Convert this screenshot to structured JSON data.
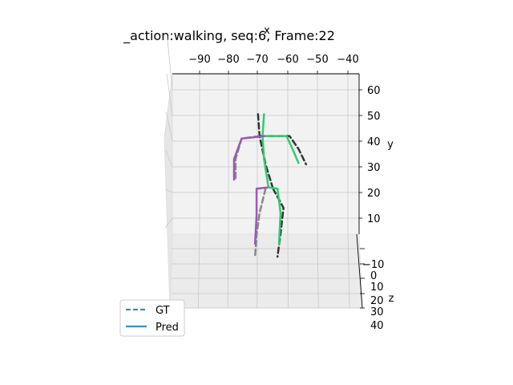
{
  "chart_data": {
    "type": "line",
    "title": "_action:walking, seq:6,   Frame:22",
    "xlabel": "x",
    "ylabel": "y",
    "zlabel": "z",
    "x_ticks": [
      "−90",
      "−80",
      "−70",
      "−60",
      "−50",
      "−40"
    ],
    "y_ticks": [
      "10",
      "20",
      "30",
      "40",
      "50",
      "60"
    ],
    "z_ticks": [
      "−10",
      "0",
      "10",
      "20",
      "30",
      "40"
    ],
    "legend": [
      {
        "label": "GT",
        "style": "dashed",
        "color": "#3a8fc7"
      },
      {
        "label": "Pred",
        "style": "solid",
        "color": "#3a8fc7"
      }
    ],
    "legend_position": "lower-left",
    "colors": {
      "pred_left": "#9b59b6",
      "pred_right": "#2ecc71",
      "pred_center": "#2ecc71",
      "gt_left": "#888888",
      "gt_right": "#333333"
    },
    "skeleton": {
      "gt": [
        {
          "name": "spine",
          "side": "center",
          "points": [
            [
              -70.5,
              50.5
            ],
            [
              -70,
              42
            ],
            [
              -68,
              31
            ],
            [
              -65.5,
              21.5
            ]
          ]
        },
        {
          "name": "left-arm",
          "side": "left",
          "points": [
            [
              -70,
              42
            ],
            [
              -76,
              41
            ],
            [
              -78,
              33
            ],
            [
              -78,
              25
            ]
          ]
        },
        {
          "name": "right-arm",
          "side": "right",
          "points": [
            [
              -70,
              42
            ],
            [
              -60,
              42
            ],
            [
              -57,
              37
            ],
            [
              -54.5,
              31
            ]
          ]
        },
        {
          "name": "left-leg",
          "side": "left",
          "points": [
            [
              -68,
              21.5
            ],
            [
              -70,
              12
            ],
            [
              -71,
              3.5
            ],
            [
              -71.5,
              -5
            ]
          ]
        },
        {
          "name": "right-leg",
          "side": "right",
          "points": [
            [
              -65.5,
              21.5
            ],
            [
              -62,
              14
            ],
            [
              -63,
              4
            ],
            [
              -64,
              -5
            ]
          ]
        }
      ],
      "pred": [
        {
          "name": "spine",
          "side": "center",
          "points": [
            [
              -68.5,
              50.5
            ],
            [
              -69,
              42
            ],
            [
              -68.5,
              33
            ],
            [
              -67,
              22
            ]
          ]
        },
        {
          "name": "left-arm",
          "side": "left",
          "points": [
            [
              -68,
              42
            ],
            [
              -76,
              41
            ],
            [
              -78.5,
              33
            ],
            [
              -78.5,
              25
            ]
          ]
        },
        {
          "name": "right-arm",
          "side": "right",
          "points": [
            [
              -68,
              42
            ],
            [
              -61,
              42
            ],
            [
              -59,
              37
            ],
            [
              -57,
              31.5
            ]
          ]
        },
        {
          "name": "left-leg",
          "side": "left",
          "points": [
            [
              -67,
              22
            ],
            [
              -71,
              21.5
            ],
            [
              -71,
              11
            ],
            [
              -71.5,
              0
            ]
          ]
        },
        {
          "name": "right-leg",
          "side": "right",
          "points": [
            [
              -67,
              22
            ],
            [
              -64,
              21.5
            ],
            [
              -63,
              12
            ],
            [
              -63.5,
              0
            ]
          ]
        }
      ]
    }
  }
}
